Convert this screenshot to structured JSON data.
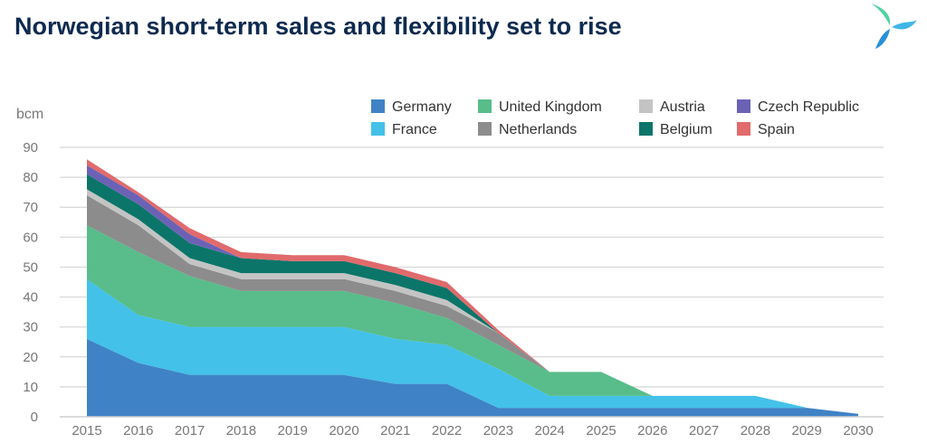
{
  "header": {
    "title": "Norwegian short-term sales and flexibility set to rise"
  },
  "chart_data": {
    "type": "area",
    "stacked": true,
    "ylabel": "bcm",
    "ylim": [
      0,
      90
    ],
    "yticks": [
      0,
      10,
      20,
      30,
      40,
      50,
      60,
      70,
      80,
      90
    ],
    "grid": true,
    "legend": "top-right",
    "x": [
      2015,
      2016,
      2017,
      2018,
      2019,
      2020,
      2021,
      2022,
      2023,
      2024,
      2025,
      2026,
      2027,
      2028,
      2029,
      2030
    ],
    "series": [
      {
        "name": "Germany",
        "color": "#3f83c6",
        "values": [
          26,
          18,
          14,
          14,
          14,
          14,
          11,
          11,
          3,
          3,
          3,
          3,
          3,
          3,
          3,
          1
        ]
      },
      {
        "name": "France",
        "color": "#43c1e9",
        "values": [
          20,
          16,
          16,
          16,
          16,
          16,
          15,
          13,
          13,
          4,
          4,
          4,
          4,
          4,
          0,
          0
        ]
      },
      {
        "name": "United Kingdom",
        "color": "#58bd8a",
        "values": [
          18,
          21,
          17,
          12,
          12,
          12,
          12,
          9,
          8,
          8,
          8,
          0,
          0,
          0,
          0,
          0
        ]
      },
      {
        "name": "Netherlands",
        "color": "#8c8c8c",
        "values": [
          10,
          9,
          4,
          4,
          4,
          4,
          4,
          4,
          4,
          0,
          0,
          0,
          0,
          0,
          0,
          0
        ]
      },
      {
        "name": "Austria",
        "color": "#c4c4c4",
        "values": [
          2,
          2,
          2,
          2,
          2,
          2,
          2,
          2,
          0,
          0,
          0,
          0,
          0,
          0,
          0,
          0
        ]
      },
      {
        "name": "Belgium",
        "color": "#0b756a",
        "values": [
          5,
          5,
          5,
          5,
          4,
          4,
          4,
          4,
          0,
          0,
          0,
          0,
          0,
          0,
          0,
          0
        ]
      },
      {
        "name": "Czech Republic",
        "color": "#6c62b5",
        "values": [
          3,
          3,
          3,
          0,
          0,
          0,
          0,
          0,
          0,
          0,
          0,
          0,
          0,
          0,
          0,
          0
        ]
      },
      {
        "name": "Spain",
        "color": "#e06a6c",
        "values": [
          2,
          1,
          2,
          2,
          2,
          2,
          2,
          2,
          1,
          0,
          0,
          0,
          0,
          0,
          0,
          0
        ]
      }
    ]
  }
}
